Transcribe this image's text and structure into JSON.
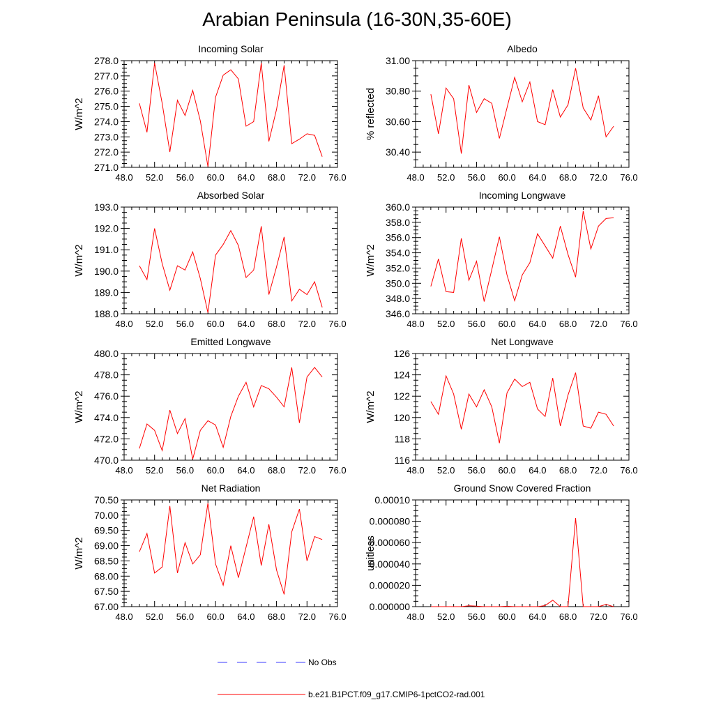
{
  "title": "Arabian Peninsula (16-30N,35-60E)",
  "legend": {
    "entries": [
      {
        "label": "No Obs",
        "color": "#3a3aff",
        "style": "dashed"
      },
      {
        "label": "b.e21.B1PCT.f09_g17.CMIP6-1pctCO2-rad.001",
        "color": "#ff0000",
        "style": "solid"
      }
    ]
  },
  "chart_data": [
    {
      "type": "line",
      "title": "Incoming Solar",
      "ylabel": "W/m^2",
      "xlim": [
        48,
        76
      ],
      "ylim": [
        271,
        278
      ],
      "xticks": [
        "48.0",
        "52.0",
        "56.0",
        "60.0",
        "64.0",
        "68.0",
        "72.0",
        "76.0"
      ],
      "yticks": [
        "271.0",
        "272.0",
        "273.0",
        "274.0",
        "275.0",
        "276.0",
        "277.0",
        "278.0"
      ],
      "x": [
        50,
        51,
        52,
        53,
        54,
        55,
        56,
        57,
        58,
        59,
        60,
        61,
        62,
        63,
        64,
        65,
        66,
        67,
        68,
        69,
        70,
        71,
        72,
        73,
        74
      ],
      "y": [
        275.2,
        273.3,
        277.85,
        275.2,
        272.0,
        275.4,
        274.4,
        276.05,
        274.05,
        271.05,
        275.6,
        277.05,
        277.4,
        276.8,
        273.7,
        274.0,
        277.85,
        272.7,
        274.8,
        277.7,
        272.55,
        272.85,
        273.2,
        273.1,
        271.7
      ],
      "color": "#ff0000"
    },
    {
      "type": "line",
      "title": "Albedo",
      "ylabel": "% reflected",
      "xlim": [
        48,
        76
      ],
      "ylim": [
        30.3,
        31.0
      ],
      "xticks": [
        "48.0",
        "52.0",
        "56.0",
        "60.0",
        "64.0",
        "68.0",
        "72.0",
        "76.0"
      ],
      "yticks": [
        "30.40",
        "30.60",
        "30.80",
        "31.00"
      ],
      "x": [
        50,
        51,
        52,
        53,
        54,
        55,
        56,
        57,
        58,
        59,
        60,
        61,
        62,
        63,
        64,
        65,
        66,
        67,
        68,
        69,
        70,
        71,
        72,
        73,
        74
      ],
      "y": [
        30.78,
        30.52,
        30.82,
        30.75,
        30.39,
        30.84,
        30.66,
        30.75,
        30.72,
        30.49,
        30.69,
        30.89,
        30.73,
        30.86,
        30.6,
        30.58,
        30.81,
        30.63,
        30.71,
        30.95,
        30.69,
        30.61,
        30.77,
        30.5,
        30.57
      ],
      "color": "#ff0000"
    },
    {
      "type": "line",
      "title": "Absorbed Solar",
      "ylabel": "W/m^2",
      "xlim": [
        48,
        76
      ],
      "ylim": [
        188,
        193
      ],
      "xticks": [
        "48.0",
        "52.0",
        "56.0",
        "60.0",
        "64.0",
        "68.0",
        "72.0",
        "76.0"
      ],
      "yticks": [
        "188.0",
        "189.0",
        "190.0",
        "191.0",
        "192.0",
        "193.0"
      ],
      "x": [
        50,
        51,
        52,
        53,
        54,
        55,
        56,
        57,
        58,
        59,
        60,
        61,
        62,
        63,
        64,
        65,
        66,
        67,
        68,
        69,
        70,
        71,
        72,
        73,
        74
      ],
      "y": [
        190.25,
        189.6,
        192.0,
        190.35,
        189.1,
        190.25,
        190.05,
        190.9,
        189.65,
        188.05,
        190.75,
        191.25,
        191.9,
        191.2,
        189.7,
        190.05,
        192.1,
        188.9,
        190.2,
        191.6,
        188.6,
        189.15,
        188.9,
        189.5,
        188.3
      ],
      "color": "#ff0000"
    },
    {
      "type": "line",
      "title": "Incoming Longwave",
      "ylabel": "W/m^2",
      "xlim": [
        48,
        76
      ],
      "ylim": [
        346,
        360
      ],
      "xticks": [
        "48.0",
        "52.0",
        "56.0",
        "60.0",
        "64.0",
        "68.0",
        "72.0",
        "76.0"
      ],
      "yticks": [
        "346.0",
        "348.0",
        "350.0",
        "352.0",
        "354.0",
        "356.0",
        "358.0",
        "360.0"
      ],
      "x": [
        50,
        51,
        52,
        53,
        54,
        55,
        56,
        57,
        58,
        59,
        60,
        61,
        62,
        63,
        64,
        65,
        66,
        67,
        68,
        69,
        70,
        71,
        72,
        73,
        74
      ],
      "y": [
        349.6,
        353.2,
        348.9,
        348.8,
        355.9,
        350.4,
        352.9,
        347.6,
        351.8,
        356.1,
        351.1,
        347.7,
        351.1,
        352.7,
        356.5,
        354.9,
        353.3,
        357.5,
        353.8,
        350.8,
        359.5,
        354.5,
        357.5,
        358.5,
        358.6
      ],
      "color": "#ff0000"
    },
    {
      "type": "line",
      "title": "Emitted Longwave",
      "ylabel": "W/m^2",
      "xlim": [
        48,
        76
      ],
      "ylim": [
        470,
        480
      ],
      "xticks": [
        "48.0",
        "52.0",
        "56.0",
        "60.0",
        "64.0",
        "68.0",
        "72.0",
        "76.0"
      ],
      "yticks": [
        "470.0",
        "472.0",
        "474.0",
        "476.0",
        "478.0",
        "480.0"
      ],
      "x": [
        50,
        51,
        52,
        53,
        54,
        55,
        56,
        57,
        58,
        59,
        60,
        61,
        62,
        63,
        64,
        65,
        66,
        67,
        68,
        69,
        70,
        71,
        72,
        73,
        74
      ],
      "y": [
        471.1,
        473.4,
        472.8,
        470.9,
        474.7,
        472.5,
        473.9,
        470.1,
        472.8,
        473.7,
        473.3,
        471.2,
        474.1,
        476.0,
        477.3,
        475.0,
        477.0,
        476.7,
        475.9,
        475.0,
        478.7,
        473.5,
        477.8,
        478.7,
        477.8
      ],
      "color": "#ff0000"
    },
    {
      "type": "line",
      "title": "Net Longwave",
      "ylabel": "W/m^2",
      "xlim": [
        48,
        76
      ],
      "ylim": [
        116,
        126
      ],
      "xticks": [
        "48.0",
        "52.0",
        "56.0",
        "60.0",
        "64.0",
        "68.0",
        "72.0",
        "76.0"
      ],
      "yticks": [
        "116",
        "118",
        "120",
        "122",
        "124",
        "126"
      ],
      "x": [
        50,
        51,
        52,
        53,
        54,
        55,
        56,
        57,
        58,
        59,
        60,
        61,
        62,
        63,
        64,
        65,
        66,
        67,
        68,
        69,
        70,
        71,
        72,
        73,
        74
      ],
      "y": [
        121.5,
        120.3,
        123.9,
        122.2,
        118.9,
        122.2,
        121.0,
        122.6,
        121.0,
        117.6,
        122.3,
        123.6,
        122.9,
        123.3,
        120.8,
        120.1,
        123.7,
        119.2,
        122.1,
        124.2,
        119.2,
        119.0,
        120.5,
        120.3,
        119.2
      ],
      "color": "#ff0000"
    },
    {
      "type": "line",
      "title": "Net Radiation",
      "ylabel": "W/m^2",
      "xlim": [
        48,
        76
      ],
      "ylim": [
        67.0,
        70.5
      ],
      "xticks": [
        "48.0",
        "52.0",
        "56.0",
        "60.0",
        "64.0",
        "68.0",
        "72.0",
        "76.0"
      ],
      "yticks": [
        "67.00",
        "67.50",
        "68.00",
        "68.50",
        "69.00",
        "69.50",
        "70.00",
        "70.50"
      ],
      "x": [
        50,
        51,
        52,
        53,
        54,
        55,
        56,
        57,
        58,
        59,
        60,
        61,
        62,
        63,
        64,
        65,
        66,
        67,
        68,
        69,
        70,
        71,
        72,
        73,
        74
      ],
      "y": [
        68.8,
        69.4,
        68.1,
        68.3,
        70.3,
        68.1,
        69.1,
        68.4,
        68.7,
        70.4,
        68.4,
        67.7,
        69.0,
        67.95,
        68.95,
        69.95,
        68.35,
        69.7,
        68.2,
        67.4,
        69.45,
        70.2,
        68.5,
        69.3,
        69.2
      ],
      "color": "#ff0000"
    },
    {
      "type": "line",
      "title": "Ground Snow Covered Fraction",
      "ylabel": "unitless",
      "xlim": [
        48,
        76
      ],
      "ylim": [
        0,
        0.0001
      ],
      "xticks": [
        "48.0",
        "52.0",
        "56.0",
        "60.0",
        "64.0",
        "68.0",
        "72.0",
        "76.0"
      ],
      "yticks": [
        "0.000000",
        "0.000020",
        "0.000040",
        "0.000060",
        "0.000080",
        "0.00010"
      ],
      "x": [
        50,
        51,
        52,
        53,
        54,
        55,
        56,
        57,
        58,
        59,
        60,
        61,
        62,
        63,
        64,
        65,
        66,
        67,
        68,
        69,
        70,
        71,
        72,
        73,
        74
      ],
      "y": [
        0,
        0,
        0,
        0,
        0,
        8e-07,
        5e-07,
        0,
        0,
        0,
        4e-07,
        0,
        0,
        0,
        0,
        1e-06,
        6e-06,
        0,
        0,
        8.3e-05,
        0,
        0,
        0,
        2e-06,
        0
      ],
      "color": "#ff0000"
    }
  ]
}
